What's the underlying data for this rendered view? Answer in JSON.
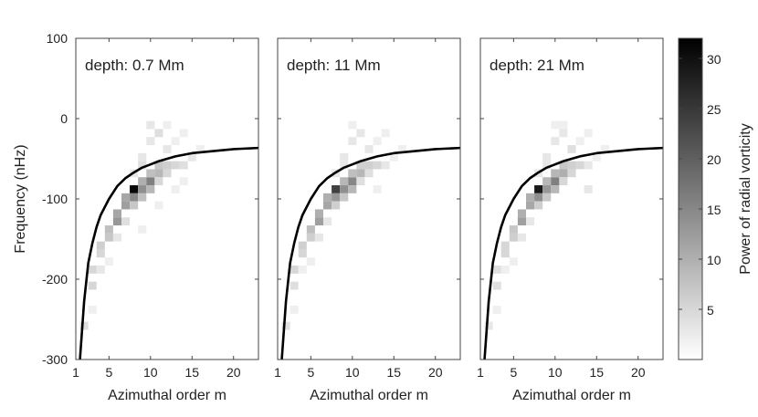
{
  "chart_data": {
    "type": "heatmap",
    "colormap": [
      "#ffffff",
      "#000000"
    ],
    "curve_color": "#000000",
    "xlabel": "Azimuthal order m",
    "ylabel": "Frequency (nHz)",
    "xlim": [
      1,
      23
    ],
    "ylim": [
      -300,
      100
    ],
    "x_ticks": [
      1,
      5,
      10,
      15,
      20
    ],
    "y_ticks": [
      100,
      0,
      -100,
      -200,
      -300
    ],
    "colorbar": {
      "label": "Power of radial vorticity",
      "range": [
        0,
        32
      ],
      "ticks": [
        5,
        10,
        15,
        20,
        25,
        30
      ]
    },
    "model_curve": {
      "m": [
        1.5,
        2,
        2.5,
        3,
        3.5,
        4,
        5,
        6,
        7,
        8,
        9,
        10,
        11,
        12,
        13,
        14,
        15,
        16,
        17,
        18,
        19,
        20,
        21,
        22,
        23
      ],
      "frequency_nhz": [
        -300,
        -228,
        -180,
        -155,
        -135,
        -120,
        -100,
        -84,
        -74,
        -67,
        -61,
        -57,
        -53,
        -50,
        -47,
        -45,
        -43,
        -42,
        -41,
        -40,
        -39,
        -38,
        -37.5,
        -37,
        -36.5
      ]
    },
    "panels": [
      {
        "label": "depth: 0.7 Mm",
        "cells": [
          {
            "m": 8,
            "f": -88,
            "p": 31
          },
          {
            "m": 8,
            "f": -98,
            "p": 15
          },
          {
            "m": 7,
            "f": -98,
            "p": 11
          },
          {
            "m": 7,
            "f": -108,
            "p": 12
          },
          {
            "m": 6,
            "f": -118,
            "p": 11
          },
          {
            "m": 6,
            "f": -128,
            "p": 13
          },
          {
            "m": 5,
            "f": -138,
            "p": 8
          },
          {
            "m": 5,
            "f": -148,
            "p": 7
          },
          {
            "m": 4,
            "f": -158,
            "p": 6
          },
          {
            "m": 4,
            "f": -168,
            "p": 5
          },
          {
            "m": 3,
            "f": -188,
            "p": 5
          },
          {
            "m": 3,
            "f": -208,
            "p": 5
          },
          {
            "m": 2,
            "f": -258,
            "p": 4
          },
          {
            "m": 9,
            "f": -88,
            "p": 14
          },
          {
            "m": 9,
            "f": -78,
            "p": 10
          },
          {
            "m": 10,
            "f": -78,
            "p": 16
          },
          {
            "m": 10,
            "f": -68,
            "p": 8
          },
          {
            "m": 11,
            "f": -68,
            "p": 9
          },
          {
            "m": 11,
            "f": -58,
            "p": 7
          },
          {
            "m": 12,
            "f": -58,
            "p": 6
          },
          {
            "m": 13,
            "f": -58,
            "p": 5
          },
          {
            "m": 14,
            "f": -58,
            "p": 4
          },
          {
            "m": 15,
            "f": -48,
            "p": 3
          },
          {
            "m": 9,
            "f": -98,
            "p": 8
          },
          {
            "m": 8,
            "f": -108,
            "p": 7
          },
          {
            "m": 10,
            "f": -88,
            "p": 9
          },
          {
            "m": 11,
            "f": -78,
            "p": 5
          },
          {
            "m": 12,
            "f": -68,
            "p": 5
          },
          {
            "m": 10,
            "f": -28,
            "p": 3
          },
          {
            "m": 10,
            "f": -8,
            "p": 3
          },
          {
            "m": 11,
            "f": -18,
            "p": 4
          },
          {
            "m": 12,
            "f": -38,
            "p": 3
          },
          {
            "m": 9,
            "f": -48,
            "p": 3
          },
          {
            "m": 13,
            "f": -28,
            "p": 2
          },
          {
            "m": 14,
            "f": -18,
            "p": 2
          },
          {
            "m": 12,
            "f": -8,
            "p": 2
          },
          {
            "m": 9,
            "f": -58,
            "p": 4
          },
          {
            "m": 8,
            "f": -68,
            "p": 3
          },
          {
            "m": 16,
            "f": -38,
            "p": 2
          },
          {
            "m": 7,
            "f": -128,
            "p": 4
          },
          {
            "m": 6,
            "f": -148,
            "p": 3
          },
          {
            "m": 4,
            "f": -188,
            "p": 3
          },
          {
            "m": 13,
            "f": -88,
            "p": 2
          },
          {
            "m": 11,
            "f": -108,
            "p": 2
          },
          {
            "m": 3,
            "f": -238,
            "p": 2
          },
          {
            "m": 5,
            "f": -178,
            "p": 2
          },
          {
            "m": 9,
            "f": -138,
            "p": 2
          },
          {
            "m": 14,
            "f": -78,
            "p": 2
          }
        ]
      },
      {
        "label": "depth: 11 Mm",
        "cells": [
          {
            "m": 8,
            "f": -88,
            "p": 24
          },
          {
            "m": 9,
            "f": -88,
            "p": 14
          },
          {
            "m": 8,
            "f": -98,
            "p": 13
          },
          {
            "m": 7,
            "f": -98,
            "p": 10
          },
          {
            "m": 7,
            "f": -108,
            "p": 11
          },
          {
            "m": 6,
            "f": -118,
            "p": 10
          },
          {
            "m": 6,
            "f": -128,
            "p": 12
          },
          {
            "m": 5,
            "f": -138,
            "p": 8
          },
          {
            "m": 5,
            "f": -148,
            "p": 6
          },
          {
            "m": 4,
            "f": -158,
            "p": 6
          },
          {
            "m": 4,
            "f": -168,
            "p": 5
          },
          {
            "m": 3,
            "f": -188,
            "p": 5
          },
          {
            "m": 3,
            "f": -208,
            "p": 4
          },
          {
            "m": 2,
            "f": -258,
            "p": 4
          },
          {
            "m": 9,
            "f": -78,
            "p": 9
          },
          {
            "m": 10,
            "f": -78,
            "p": 15
          },
          {
            "m": 10,
            "f": -68,
            "p": 8
          },
          {
            "m": 11,
            "f": -68,
            "p": 9
          },
          {
            "m": 11,
            "f": -58,
            "p": 6
          },
          {
            "m": 12,
            "f": -58,
            "p": 6
          },
          {
            "m": 13,
            "f": -58,
            "p": 5
          },
          {
            "m": 14,
            "f": -58,
            "p": 3
          },
          {
            "m": 9,
            "f": -98,
            "p": 7
          },
          {
            "m": 8,
            "f": -108,
            "p": 6
          },
          {
            "m": 10,
            "f": -88,
            "p": 9
          },
          {
            "m": 11,
            "f": -78,
            "p": 4
          },
          {
            "m": 12,
            "f": -68,
            "p": 4
          },
          {
            "m": 10,
            "f": -28,
            "p": 3
          },
          {
            "m": 11,
            "f": -18,
            "p": 3
          },
          {
            "m": 12,
            "f": -38,
            "p": 3
          },
          {
            "m": 9,
            "f": -48,
            "p": 3
          },
          {
            "m": 13,
            "f": -28,
            "p": 2
          },
          {
            "m": 9,
            "f": -58,
            "p": 3
          },
          {
            "m": 8,
            "f": -68,
            "p": 3
          },
          {
            "m": 7,
            "f": -128,
            "p": 3
          },
          {
            "m": 6,
            "f": -148,
            "p": 3
          },
          {
            "m": 4,
            "f": -188,
            "p": 2
          },
          {
            "m": 13,
            "f": -88,
            "p": 2
          },
          {
            "m": 3,
            "f": -238,
            "p": 2
          },
          {
            "m": 15,
            "f": -48,
            "p": 2
          },
          {
            "m": 10,
            "f": -8,
            "p": 2
          },
          {
            "m": 14,
            "f": -18,
            "p": 2
          },
          {
            "m": 5,
            "f": -178,
            "p": 2
          },
          {
            "m": 16,
            "f": -38,
            "p": 2
          }
        ]
      },
      {
        "label": "depth: 21 Mm",
        "cells": [
          {
            "m": 8,
            "f": -88,
            "p": 29
          },
          {
            "m": 9,
            "f": -88,
            "p": 13
          },
          {
            "m": 8,
            "f": -98,
            "p": 14
          },
          {
            "m": 7,
            "f": -98,
            "p": 10
          },
          {
            "m": 7,
            "f": -108,
            "p": 11
          },
          {
            "m": 6,
            "f": -118,
            "p": 10
          },
          {
            "m": 6,
            "f": -128,
            "p": 12
          },
          {
            "m": 5,
            "f": -138,
            "p": 7
          },
          {
            "m": 5,
            "f": -148,
            "p": 6
          },
          {
            "m": 4,
            "f": -158,
            "p": 5
          },
          {
            "m": 4,
            "f": -168,
            "p": 5
          },
          {
            "m": 3,
            "f": -188,
            "p": 4
          },
          {
            "m": 3,
            "f": -208,
            "p": 4
          },
          {
            "m": 2,
            "f": -258,
            "p": 3
          },
          {
            "m": 9,
            "f": -78,
            "p": 9
          },
          {
            "m": 10,
            "f": -78,
            "p": 16
          },
          {
            "m": 10,
            "f": -68,
            "p": 9
          },
          {
            "m": 11,
            "f": -68,
            "p": 10
          },
          {
            "m": 11,
            "f": -58,
            "p": 7
          },
          {
            "m": 12,
            "f": -58,
            "p": 6
          },
          {
            "m": 13,
            "f": -58,
            "p": 5
          },
          {
            "m": 14,
            "f": -58,
            "p": 3
          },
          {
            "m": 9,
            "f": -98,
            "p": 7
          },
          {
            "m": 8,
            "f": -108,
            "p": 6
          },
          {
            "m": 10,
            "f": -88,
            "p": 9
          },
          {
            "m": 11,
            "f": -78,
            "p": 5
          },
          {
            "m": 12,
            "f": -68,
            "p": 5
          },
          {
            "m": 10,
            "f": -28,
            "p": 3
          },
          {
            "m": 11,
            "f": -18,
            "p": 3
          },
          {
            "m": 12,
            "f": -38,
            "p": 4
          },
          {
            "m": 9,
            "f": -48,
            "p": 3
          },
          {
            "m": 13,
            "f": -28,
            "p": 2
          },
          {
            "m": 9,
            "f": -58,
            "p": 3
          },
          {
            "m": 8,
            "f": -68,
            "p": 3
          },
          {
            "m": 7,
            "f": -128,
            "p": 3
          },
          {
            "m": 6,
            "f": -148,
            "p": 3
          },
          {
            "m": 4,
            "f": -188,
            "p": 2
          },
          {
            "m": 14,
            "f": -88,
            "p": 3
          },
          {
            "m": 3,
            "f": -238,
            "p": 2
          },
          {
            "m": 15,
            "f": -48,
            "p": 2
          },
          {
            "m": 10,
            "f": -8,
            "p": 2
          },
          {
            "m": 14,
            "f": -18,
            "p": 2
          },
          {
            "m": 5,
            "f": -178,
            "p": 2
          },
          {
            "m": 16,
            "f": -38,
            "p": 2
          },
          {
            "m": 11,
            "f": -8,
            "p": 2
          }
        ]
      }
    ]
  }
}
